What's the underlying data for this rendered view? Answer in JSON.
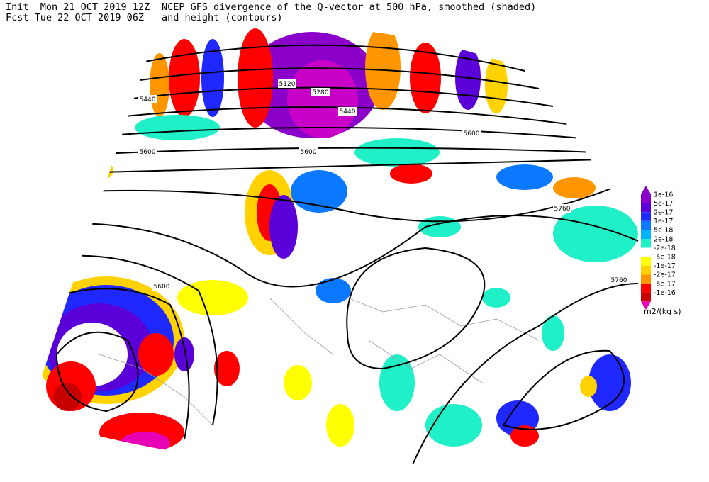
{
  "header": {
    "init": "Init  Mon 21 OCT 2019 12Z",
    "forecast": "Fcst Tue 22 OCT 2019 06Z",
    "title": "NCEP GFS divergence of the Q-vector at 500 hPa, smoothed (shaded)",
    "subtitle": "and height (contours)"
  },
  "contour_labels": [
    "5440",
    "5120",
    "5280",
    "5440",
    "5600",
    "5600",
    "5600",
    "5760",
    "5760",
    "5600"
  ],
  "colorbar": {
    "levels": [
      {
        "label": "1e-16",
        "color": "#8a00c8"
      },
      {
        "label": "5e-17",
        "color": "#5a00d8"
      },
      {
        "label": "2e-17",
        "color": "#1e28ff"
      },
      {
        "label": "1e-17",
        "color": "#0a78ff"
      },
      {
        "label": "5e-18",
        "color": "#00b4ff"
      },
      {
        "label": "2e-18",
        "color": "#20f0c8"
      },
      {
        "label": "-2e-18",
        "color": "#ffffff"
      },
      {
        "label": "-5e-18",
        "color": "#ffff00"
      },
      {
        "label": "-1e-17",
        "color": "#ffd200"
      },
      {
        "label": "-2e-17",
        "color": "#ff9600"
      },
      {
        "label": "-5e-17",
        "color": "#ff0000"
      },
      {
        "label": "-1e-16",
        "color": "#c80000"
      }
    ],
    "low_color": "#e800b4",
    "unit": "m2/(kg s)"
  }
}
